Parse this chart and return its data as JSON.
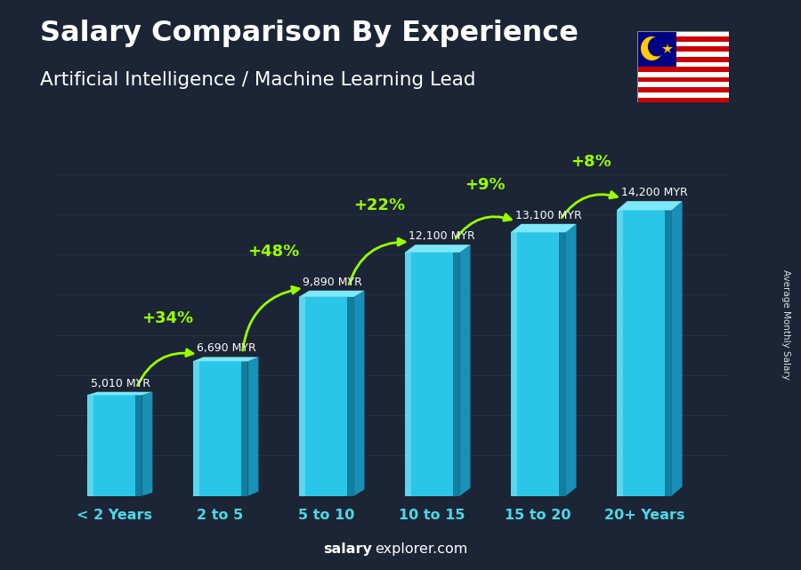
{
  "title": "Salary Comparison By Experience",
  "subtitle": "Artificial Intelligence / Machine Learning Lead",
  "categories": [
    "< 2 Years",
    "2 to 5",
    "5 to 10",
    "10 to 15",
    "15 to 20",
    "20+ Years"
  ],
  "values": [
    5010,
    6690,
    9890,
    12100,
    13100,
    14200
  ],
  "value_labels": [
    "5,010 MYR",
    "6,690 MYR",
    "9,890 MYR",
    "12,100 MYR",
    "13,100 MYR",
    "14,200 MYR"
  ],
  "pct_labels": [
    "+34%",
    "+48%",
    "+22%",
    "+9%",
    "+8%"
  ],
  "bar_color_front": "#29C6E8",
  "bar_color_top": "#7DE8F8",
  "bar_color_side": "#1890B8",
  "bg_color": "#1C2535",
  "title_color": "#FFFFFF",
  "subtitle_color": "#FFFFFF",
  "value_label_color": "#FFFFFF",
  "pct_color": "#99FF00",
  "xlabel_color": "#4DD8E8",
  "watermark_bold": "salary",
  "watermark_normal": "explorer.com",
  "side_label": "Average Monthly Salary",
  "ylim_max": 17000,
  "bar_width": 0.52
}
